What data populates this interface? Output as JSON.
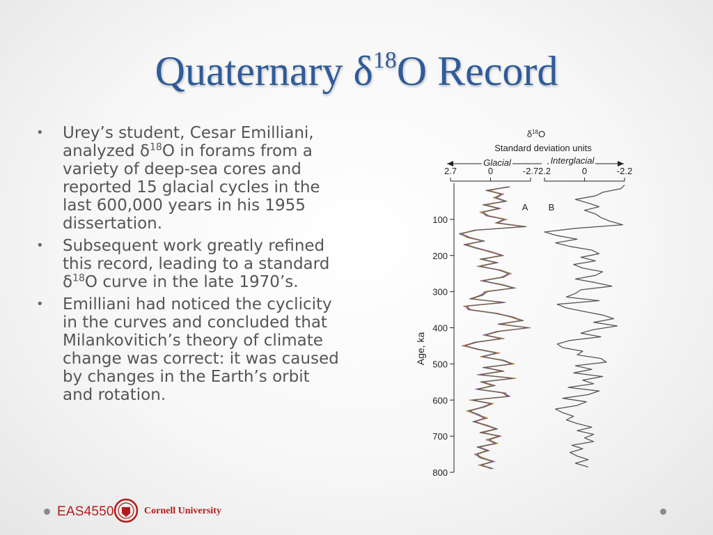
{
  "title": {
    "main": "Quaternary δ",
    "sup": "18",
    "rest": "O Record"
  },
  "bullets": [
    {
      "p1": "Urey’s student, Cesar Emilliani, analyzed δ",
      "sup": "18",
      "p2": "O in forams from a variety of deep-sea cores and reported 15 glacial cycles in the last 600,000 years in his 1955 dissertation."
    },
    {
      "p1": "Subsequent work greatly refined this record, leading to a standard δ",
      "sup": "18",
      "p2": "O curve in the late 1970’s."
    },
    {
      "p1": "Emilliani had noticed the cyclicity in the curves and concluded that Milankovitich’s theory of climate change was correct: it was caused by changes in the Earth’s orbit and rotation.",
      "sup": "",
      "p2": ""
    }
  ],
  "chart_data": {
    "type": "line",
    "header": {
      "title_pre": "δ",
      "title_sup": "18",
      "title_post": "O",
      "subtitle": "Standard deviation units",
      "glacial": "Glacial",
      "interglacial": "Interglacial"
    },
    "ylabel": "Age, ka",
    "yticks": [
      100,
      200,
      300,
      400,
      500,
      600,
      700,
      800
    ],
    "ylim": [
      0,
      800
    ],
    "panels": [
      {
        "label": "A",
        "xticks": [
          "2.7",
          "0",
          "-2.7"
        ],
        "xlim": [
          2.7,
          -2.7
        ],
        "series": [
          {
            "color": "#d6405a"
          },
          {
            "color": "#3a56c4"
          },
          {
            "color": "#3c9a4a"
          },
          {
            "color": "#a85ec8"
          },
          {
            "color": "#c88a30"
          },
          {
            "color": "#555555"
          }
        ],
        "y": [
          10,
          20,
          30,
          40,
          50,
          60,
          70,
          80,
          90,
          100,
          110,
          120,
          130,
          140,
          150,
          160,
          170,
          180,
          190,
          200,
          210,
          220,
          230,
          240,
          250,
          260,
          270,
          280,
          290,
          300,
          310,
          320,
          330,
          340,
          350,
          360,
          370,
          380,
          390,
          400,
          410,
          420,
          430,
          440,
          450,
          460,
          470,
          480,
          490,
          500,
          510,
          520,
          530,
          540,
          550,
          560,
          570,
          580,
          590,
          600,
          610,
          620,
          630,
          640,
          650,
          660,
          670,
          680,
          690,
          700,
          710,
          720,
          730,
          740,
          750,
          760,
          770,
          780,
          790
        ],
        "x": [
          -1.2,
          0.2,
          -0.8,
          -0.3,
          -1.0,
          0.4,
          -0.6,
          0.6,
          0.2,
          -1.0,
          -0.4,
          -2.3,
          1.0,
          2.0,
          1.5,
          0.5,
          1.7,
          0.9,
          0.0,
          -0.8,
          0.6,
          -0.4,
          0.8,
          -0.6,
          -1.3,
          -0.8,
          0.6,
          -0.7,
          -1.6,
          0.3,
          0.6,
          1.3,
          -0.9,
          1.7,
          1.4,
          -0.4,
          -1.4,
          -2.1,
          -0.6,
          -2.6,
          -0.5,
          0.4,
          -0.8,
          1.0,
          1.8,
          0.8,
          -0.5,
          0.6,
          -0.8,
          -1.5,
          0.4,
          -0.8,
          0.8,
          -1.6,
          0.6,
          -0.2,
          0.9,
          -0.9,
          -1.2,
          1.3,
          -0.1,
          0.5,
          1.5,
          0.9,
          0.3,
          1.1,
          0.3,
          -0.4,
          0.6,
          -0.6,
          0.2,
          -0.4,
          0.8,
          0.2,
          1.0,
          0.6,
          -0.2,
          0.7,
          -0.1
        ]
      },
      {
        "label": "B",
        "xticks": [
          "2.2",
          "0",
          "-2.2"
        ],
        "xlim": [
          2.2,
          -2.2
        ],
        "series": [
          {
            "color": "#555555"
          }
        ],
        "y": [
          5,
          15,
          25,
          35,
          45,
          55,
          65,
          75,
          85,
          95,
          105,
          115,
          125,
          135,
          145,
          155,
          165,
          175,
          185,
          195,
          205,
          215,
          225,
          235,
          245,
          255,
          265,
          275,
          285,
          295,
          305,
          315,
          325,
          335,
          345,
          355,
          365,
          375,
          385,
          395,
          405,
          415,
          425,
          435,
          445,
          455,
          465,
          475,
          485,
          495,
          505,
          515,
          525,
          535,
          545,
          555,
          565,
          575,
          585,
          595,
          605,
          615,
          625,
          635,
          645,
          655,
          665,
          675,
          685,
          695,
          705,
          715,
          725,
          735,
          745,
          755,
          765,
          775,
          785
        ],
        "x": [
          -2.2,
          -2.0,
          -1.0,
          -0.6,
          0.5,
          -0.2,
          -0.8,
          0.0,
          -0.6,
          -0.9,
          -1.4,
          -2.1,
          0.5,
          2.2,
          1.5,
          0.4,
          1.6,
          0.8,
          -0.4,
          -0.8,
          0.2,
          -0.6,
          0.6,
          0.1,
          -1.0,
          -0.6,
          0.5,
          -0.6,
          -1.5,
          0.2,
          0.5,
          1.0,
          -0.8,
          1.5,
          1.0,
          0.0,
          -1.0,
          -1.6,
          -0.5,
          -1.8,
          -0.5,
          0.2,
          -0.9,
          0.8,
          1.5,
          1.2,
          0.1,
          0.4,
          -0.9,
          -1.2,
          0.5,
          -0.4,
          0.6,
          -1.0,
          0.1,
          -0.5,
          0.9,
          -0.8,
          -0.2,
          1.2,
          -0.1,
          0.4,
          1.6,
          1.2,
          0.6,
          1.0,
          0.4,
          -0.4,
          0.4,
          -0.5,
          0.0,
          -0.5,
          0.7,
          0.1,
          0.8,
          0.4,
          -0.2,
          0.5,
          -0.2
        ]
      }
    ]
  },
  "footer": {
    "course": "EAS4550",
    "university": "Cornell University"
  }
}
